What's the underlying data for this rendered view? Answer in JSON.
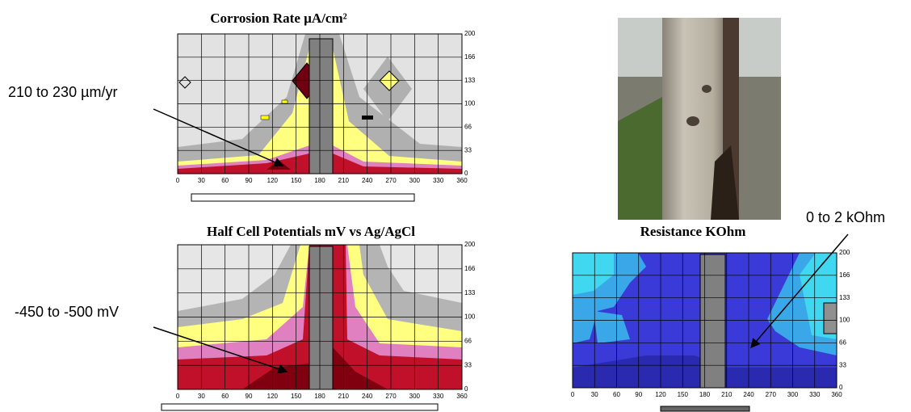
{
  "panels": [
    {
      "title": "Corrosion Rate µA/cm²",
      "annotation": "210 to 230 µm/yr",
      "x_ticks": [
        "0",
        "30",
        "60",
        "90",
        "120",
        "150",
        "180",
        "210",
        "240",
        "270",
        "300",
        "330",
        "360"
      ],
      "y_ticks": [
        "0",
        "33",
        "66",
        "100",
        "133",
        "166",
        "200"
      ]
    },
    {
      "title": "Half Cell Potentials mV vs Ag/AgCl",
      "annotation": "-450 to -500 mV",
      "x_ticks": [
        "0",
        "30",
        "60",
        "90",
        "120",
        "150",
        "180",
        "210",
        "240",
        "270",
        "300",
        "330",
        "360"
      ],
      "y_ticks": [
        "0",
        "33",
        "66",
        "100",
        "133",
        "166",
        "200"
      ]
    },
    {
      "title": "Resistance KOhm",
      "annotation": "0 to 2 kOhm",
      "x_ticks": [
        "0",
        "30",
        "60",
        "90",
        "120",
        "150",
        "180",
        "210",
        "240",
        "270",
        "300",
        "330",
        "360"
      ],
      "y_ticks": [
        "0",
        "33",
        "66",
        "100",
        "133",
        "166",
        "200"
      ]
    }
  ]
}
